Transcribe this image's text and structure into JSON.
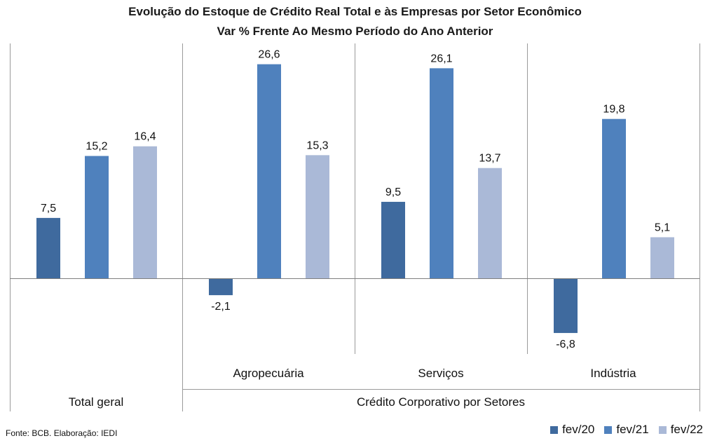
{
  "title_line1": "Evolução do Estoque de Crédito Real Total e às Empresas por Setor Econômico",
  "title_line2": "Var % Frente Ao Mesmo Período do Ano Anterior",
  "source": "Fonte: BCB. Elaboração: IEDI",
  "colors": {
    "fev20": "#3F6A9E",
    "fev21": "#4F81BD",
    "fev22": "#AAB9D7",
    "axis": "#7F7F7F",
    "divider": "#9A9A9A"
  },
  "chart_data": {
    "type": "bar",
    "categories": [
      "Total geral",
      "Agropecuária",
      "Serviços",
      "Indústria"
    ],
    "group_labels": [
      "",
      "Agropecuária",
      "Serviços",
      "Indústria"
    ],
    "super_groups": [
      {
        "label": "Total geral",
        "categories": [
          "Total geral"
        ]
      },
      {
        "label": "Crédito Corporativo por Setores",
        "categories": [
          "Agropecuária",
          "Serviços",
          "Indústria"
        ]
      }
    ],
    "series": [
      {
        "name": "fev/20",
        "values": [
          7.5,
          -2.1,
          9.5,
          -6.8
        ],
        "labels": [
          "7,5",
          "-2,1",
          "9,5",
          "-6,8"
        ]
      },
      {
        "name": "fev/21",
        "values": [
          15.2,
          26.6,
          26.1,
          19.8
        ],
        "labels": [
          "15,2",
          "26,6",
          "26,1",
          "19,8"
        ]
      },
      {
        "name": "fev/22",
        "values": [
          16.4,
          15.3,
          13.7,
          5.1
        ],
        "labels": [
          "16,4",
          "15,3",
          "13,7",
          "5,1"
        ]
      }
    ],
    "ylim": [
      -9,
      29
    ],
    "grid": false,
    "legend": "bottom-right"
  }
}
